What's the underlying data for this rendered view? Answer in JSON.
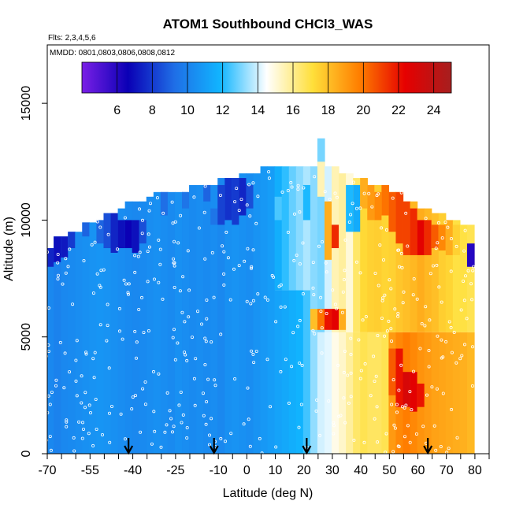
{
  "chart_data": {
    "type": "heatmap",
    "title": "ATOM1 Southbound CHCl3_WAS",
    "subtitle_flights": "Flts: 2,3,4,5,6",
    "subtitle_dates": "MMDD: 0801,0803,0806,0808,0812",
    "xlabel": "Latitude (deg N)",
    "ylabel": "Altitude (m)",
    "xlim": [
      -70,
      85
    ],
    "ylim": [
      0,
      17500
    ],
    "x_ticks": [
      -70,
      -55,
      -40,
      -25,
      -10,
      0,
      10,
      20,
      30,
      40,
      50,
      60,
      70,
      80
    ],
    "x_minor_ticks": [
      -65,
      -60,
      -50,
      -45,
      -35,
      -30,
      -20,
      -15,
      -5,
      5,
      15,
      25,
      35,
      45,
      55,
      65,
      75,
      85
    ],
    "y_ticks": [
      0,
      5000,
      10000,
      15000
    ],
    "colorbar": {
      "range": [
        4,
        25
      ],
      "ticks": [
        6,
        8,
        10,
        12,
        14,
        16,
        18,
        20,
        22,
        24
      ],
      "stops": [
        "#7a1fe6",
        "#0a00b5",
        "#1f6ee6",
        "#11b5ff",
        "#ffffff",
        "#ffdf3a",
        "#ff7f00",
        "#e60000",
        "#a61f1f"
      ]
    },
    "column_width_deg": 2.5,
    "columns": [
      {
        "lat": -69,
        "top": 8800,
        "bands": [
          [
            0,
            8800,
            10.2
          ]
        ],
        "spots": [
          [
            8000,
            8800,
            7.5
          ]
        ]
      },
      {
        "lat": -66.5,
        "top": 9300,
        "bands": [
          [
            0,
            9300,
            10.0
          ]
        ],
        "spots": [
          [
            8200,
            9300,
            7.0
          ]
        ]
      },
      {
        "lat": -64,
        "top": 9300,
        "bands": [
          [
            0,
            9300,
            10.2
          ]
        ],
        "spots": [
          [
            8400,
            9300,
            7.2
          ]
        ]
      },
      {
        "lat": -61.5,
        "top": 9500,
        "bands": [
          [
            0,
            9500,
            10.3
          ]
        ],
        "spots": [
          [
            8800,
            9500,
            8.0
          ]
        ]
      },
      {
        "lat": -59,
        "top": 9500,
        "bands": [
          [
            0,
            9500,
            10.4
          ]
        ],
        "spots": []
      },
      {
        "lat": -56.5,
        "top": 9900,
        "bands": [
          [
            0,
            9900,
            10.5
          ]
        ],
        "spots": [
          [
            9300,
            9900,
            9.0
          ]
        ]
      },
      {
        "lat": -54,
        "top": 9900,
        "bands": [
          [
            0,
            9900,
            10.6
          ]
        ],
        "spots": []
      },
      {
        "lat": -51.5,
        "top": 10000,
        "bands": [
          [
            0,
            10000,
            10.7
          ]
        ],
        "spots": [
          [
            9000,
            10000,
            9.0
          ]
        ]
      },
      {
        "lat": -49,
        "top": 10300,
        "bands": [
          [
            0,
            10300,
            10.6
          ]
        ],
        "spots": [
          [
            8800,
            10300,
            8.5
          ]
        ]
      },
      {
        "lat": -46.5,
        "top": 10300,
        "bands": [
          [
            0,
            10300,
            10.5
          ]
        ],
        "spots": [
          [
            8600,
            10300,
            7.5
          ]
        ]
      },
      {
        "lat": -44,
        "top": 10500,
        "bands": [
          [
            0,
            10500,
            10.4
          ]
        ],
        "spots": [
          [
            8800,
            10000,
            7.0
          ]
        ]
      },
      {
        "lat": -41.5,
        "top": 10800,
        "bands": [
          [
            0,
            10800,
            10.3
          ]
        ],
        "spots": [
          [
            8800,
            10000,
            6.6
          ]
        ]
      },
      {
        "lat": -39,
        "top": 10800,
        "bands": [
          [
            0,
            10800,
            10.2
          ]
        ],
        "spots": [
          [
            8600,
            10000,
            7.0
          ]
        ]
      },
      {
        "lat": -36.5,
        "top": 10800,
        "bands": [
          [
            0,
            10800,
            10.3
          ]
        ],
        "spots": [
          [
            9000,
            10000,
            8.5
          ]
        ]
      },
      {
        "lat": -34,
        "top": 11000,
        "bands": [
          [
            0,
            11000,
            10.4
          ]
        ],
        "spots": []
      },
      {
        "lat": -31.5,
        "top": 11200,
        "bands": [
          [
            0,
            11200,
            10.5
          ]
        ],
        "spots": []
      },
      {
        "lat": -29,
        "top": 11200,
        "bands": [
          [
            0,
            11200,
            10.4
          ]
        ],
        "spots": [
          [
            10200,
            11200,
            9.3
          ]
        ]
      },
      {
        "lat": -26.5,
        "top": 11200,
        "bands": [
          [
            0,
            11200,
            10.3
          ]
        ],
        "spots": []
      },
      {
        "lat": -24,
        "top": 11200,
        "bands": [
          [
            0,
            11200,
            10.5
          ]
        ],
        "spots": []
      },
      {
        "lat": -21.5,
        "top": 11200,
        "bands": [
          [
            0,
            11200,
            10.4
          ]
        ],
        "spots": [
          [
            10500,
            11200,
            9.5
          ]
        ]
      },
      {
        "lat": -19,
        "top": 11500,
        "bands": [
          [
            0,
            11500,
            10.3
          ]
        ],
        "spots": []
      },
      {
        "lat": -16.5,
        "top": 11500,
        "bands": [
          [
            0,
            11500,
            10.4
          ]
        ],
        "spots": []
      },
      {
        "lat": -14,
        "top": 11500,
        "bands": [
          [
            0,
            11500,
            10.3
          ]
        ],
        "spots": [
          [
            10800,
            11500,
            9.0
          ]
        ]
      },
      {
        "lat": -11.5,
        "top": 11500,
        "bands": [
          [
            0,
            11500,
            10.4
          ]
        ],
        "spots": [
          [
            9800,
            10500,
            9.5
          ]
        ]
      },
      {
        "lat": -9,
        "top": 11800,
        "bands": [
          [
            0,
            11800,
            10.2
          ]
        ],
        "spots": [
          [
            9800,
            11500,
            8.2
          ]
        ]
      },
      {
        "lat": -6.5,
        "top": 11800,
        "bands": [
          [
            0,
            11800,
            10.5
          ]
        ],
        "spots": [
          [
            10000,
            11800,
            7.8
          ]
        ]
      },
      {
        "lat": -4,
        "top": 11800,
        "bands": [
          [
            0,
            11800,
            10.6
          ]
        ],
        "spots": [
          [
            9800,
            11800,
            8.0
          ]
        ]
      },
      {
        "lat": -1.5,
        "top": 12000,
        "bands": [
          [
            0,
            12000,
            10.5
          ]
        ],
        "spots": [
          [
            10200,
            11800,
            7.5
          ]
        ]
      },
      {
        "lat": 1,
        "top": 12000,
        "bands": [
          [
            0,
            12000,
            10.4
          ]
        ],
        "spots": [
          [
            10500,
            11500,
            8.5
          ]
        ]
      },
      {
        "lat": 3.5,
        "top": 12000,
        "bands": [
          [
            0,
            12000,
            10.6
          ]
        ],
        "spots": []
      },
      {
        "lat": 6,
        "top": 12300,
        "bands": [
          [
            0,
            12300,
            10.8
          ]
        ],
        "spots": []
      },
      {
        "lat": 8.5,
        "top": 12300,
        "bands": [
          [
            0,
            12300,
            11.0
          ]
        ],
        "spots": []
      },
      {
        "lat": 11,
        "top": 12300,
        "bands": [
          [
            0,
            7000,
            11.2
          ],
          [
            7000,
            12300,
            11.6
          ]
        ],
        "spots": [
          [
            10000,
            11000,
            12.5
          ]
        ]
      },
      {
        "lat": 13.5,
        "top": 12300,
        "bands": [
          [
            0,
            7000,
            11.4
          ],
          [
            7000,
            12300,
            12.2
          ]
        ],
        "spots": []
      },
      {
        "lat": 16,
        "top": 12300,
        "bands": [
          [
            0,
            7000,
            11.6
          ],
          [
            7000,
            12300,
            12.8
          ]
        ],
        "spots": []
      },
      {
        "lat": 18.5,
        "top": 12300,
        "bands": [
          [
            0,
            7000,
            11.8
          ],
          [
            7000,
            12300,
            13.2
          ]
        ],
        "spots": []
      },
      {
        "lat": 21,
        "top": 12300,
        "bands": [
          [
            0,
            7000,
            12.4
          ],
          [
            7000,
            12300,
            13.6
          ]
        ],
        "spots": [
          [
            10000,
            11500,
            12.0
          ]
        ]
      },
      {
        "lat": 23.5,
        "top": 12300,
        "bands": [
          [
            0,
            5200,
            13.3
          ],
          [
            5200,
            12300,
            13.2
          ]
        ],
        "spots": [
          [
            5300,
            6200,
            18.0
          ]
        ]
      },
      {
        "lat": 26,
        "top": 13500,
        "bands": [
          [
            0,
            5200,
            14.0
          ],
          [
            5200,
            13500,
            13.0
          ]
        ],
        "spots": [
          [
            5300,
            6200,
            20.0
          ],
          [
            11000,
            12500,
            15.5
          ]
        ]
      },
      {
        "lat": 28.5,
        "top": 12300,
        "bands": [
          [
            0,
            5200,
            14.2
          ],
          [
            5200,
            12300,
            14.0
          ]
        ],
        "spots": [
          [
            5300,
            6200,
            22.0
          ],
          [
            8300,
            10800,
            18.5
          ]
        ]
      },
      {
        "lat": 31,
        "top": 12300,
        "bands": [
          [
            0,
            5200,
            14.8
          ],
          [
            5200,
            12300,
            15.5
          ]
        ],
        "spots": [
          [
            5300,
            6200,
            22.5
          ],
          [
            8800,
            9800,
            21.5
          ]
        ]
      },
      {
        "lat": 33.5,
        "top": 12000,
        "bands": [
          [
            0,
            5200,
            15.2
          ],
          [
            5200,
            12000,
            15.8
          ]
        ],
        "spots": [
          [
            5300,
            6200,
            18.5
          ]
        ]
      },
      {
        "lat": 36,
        "top": 12000,
        "bands": [
          [
            0,
            5200,
            15.8
          ],
          [
            5200,
            12000,
            15.0
          ]
        ],
        "spots": [
          [
            9500,
            11500,
            12.0
          ]
        ]
      },
      {
        "lat": 38.5,
        "top": 11800,
        "bands": [
          [
            0,
            5200,
            16.5
          ],
          [
            5200,
            11800,
            16.5
          ]
        ],
        "spots": [
          [
            9500,
            11500,
            11.5
          ]
        ]
      },
      {
        "lat": 41,
        "top": 11800,
        "bands": [
          [
            0,
            5200,
            16.8
          ],
          [
            5200,
            11800,
            17.3
          ]
        ],
        "spots": [
          [
            10500,
            11800,
            18.5
          ]
        ]
      },
      {
        "lat": 43.5,
        "top": 11500,
        "bands": [
          [
            0,
            5200,
            16.6
          ],
          [
            5200,
            11500,
            17.5
          ]
        ],
        "spots": [
          [
            10000,
            11500,
            19.0
          ]
        ]
      },
      {
        "lat": 46,
        "top": 11500,
        "bands": [
          [
            0,
            5200,
            16.6
          ],
          [
            5200,
            11500,
            17.6
          ]
        ],
        "spots": [
          [
            10000,
            11200,
            19.5
          ]
        ]
      },
      {
        "lat": 48.5,
        "top": 11500,
        "bands": [
          [
            0,
            5200,
            16.8
          ],
          [
            5200,
            11500,
            17.4
          ]
        ],
        "spots": [
          [
            10200,
            11500,
            20.0
          ]
        ]
      },
      {
        "lat": 51,
        "top": 11200,
        "bands": [
          [
            0,
            5200,
            19.0
          ],
          [
            5200,
            11200,
            17.5
          ]
        ],
        "spots": [
          [
            9500,
            11200,
            20.5
          ],
          [
            2500,
            4500,
            20.5
          ]
        ]
      },
      {
        "lat": 53.5,
        "top": 11200,
        "bands": [
          [
            0,
            5200,
            19.5
          ],
          [
            5200,
            11200,
            17.8
          ]
        ],
        "spots": [
          [
            9000,
            11200,
            21.0
          ],
          [
            2000,
            4500,
            22.0
          ]
        ]
      },
      {
        "lat": 56,
        "top": 10800,
        "bands": [
          [
            0,
            5200,
            19.8
          ],
          [
            5200,
            10800,
            18.0
          ]
        ],
        "spots": [
          [
            8500,
            10800,
            21.0
          ],
          [
            2000,
            3500,
            23.0
          ]
        ]
      },
      {
        "lat": 58.5,
        "top": 10800,
        "bands": [
          [
            0,
            5200,
            19.5
          ],
          [
            5200,
            10800,
            18.2
          ]
        ],
        "spots": [
          [
            8500,
            10500,
            21.5
          ],
          [
            1800,
            3500,
            22.5
          ]
        ]
      },
      {
        "lat": 61,
        "top": 10500,
        "bands": [
          [
            0,
            5200,
            19.2
          ],
          [
            5200,
            10500,
            18.5
          ]
        ],
        "spots": [
          [
            8500,
            10000,
            22.5
          ],
          [
            2000,
            3000,
            22.0
          ]
        ]
      },
      {
        "lat": 63.5,
        "top": 10500,
        "bands": [
          [
            0,
            5200,
            19.0
          ],
          [
            5200,
            10500,
            18.2
          ]
        ],
        "spots": [
          [
            8500,
            10000,
            21.5
          ]
        ]
      },
      {
        "lat": 66,
        "top": 10300,
        "bands": [
          [
            0,
            5200,
            18.8
          ],
          [
            5200,
            10300,
            18.0
          ]
        ],
        "spots": [
          [
            8800,
            9800,
            20.5
          ]
        ]
      },
      {
        "lat": 68.5,
        "top": 10300,
        "bands": [
          [
            0,
            5200,
            18.7
          ],
          [
            5200,
            10300,
            17.6
          ]
        ],
        "spots": [
          [
            8700,
            9800,
            19.5
          ]
        ]
      },
      {
        "lat": 71,
        "top": 10000,
        "bands": [
          [
            0,
            5200,
            18.6
          ],
          [
            5200,
            10000,
            17.4
          ]
        ],
        "spots": [
          [
            8500,
            10000,
            18.5
          ]
        ]
      },
      {
        "lat": 73.5,
        "top": 10000,
        "bands": [
          [
            0,
            5200,
            18.5
          ],
          [
            5200,
            10000,
            17.0
          ]
        ],
        "spots": [
          [
            8500,
            9800,
            17.5
          ]
        ]
      },
      {
        "lat": 76,
        "top": 9800,
        "bands": [
          [
            0,
            5200,
            18.4
          ],
          [
            5200,
            9800,
            17.0
          ]
        ],
        "spots": []
      },
      {
        "lat": 78.5,
        "top": 9800,
        "bands": [
          [
            0,
            5200,
            18.2
          ],
          [
            5200,
            9800,
            16.8
          ]
        ],
        "spots": [
          [
            8000,
            9000,
            6.0
          ]
        ]
      }
    ],
    "arrow_latitudes": [
      -41.5,
      -11.5,
      21,
      63.5
    ]
  }
}
